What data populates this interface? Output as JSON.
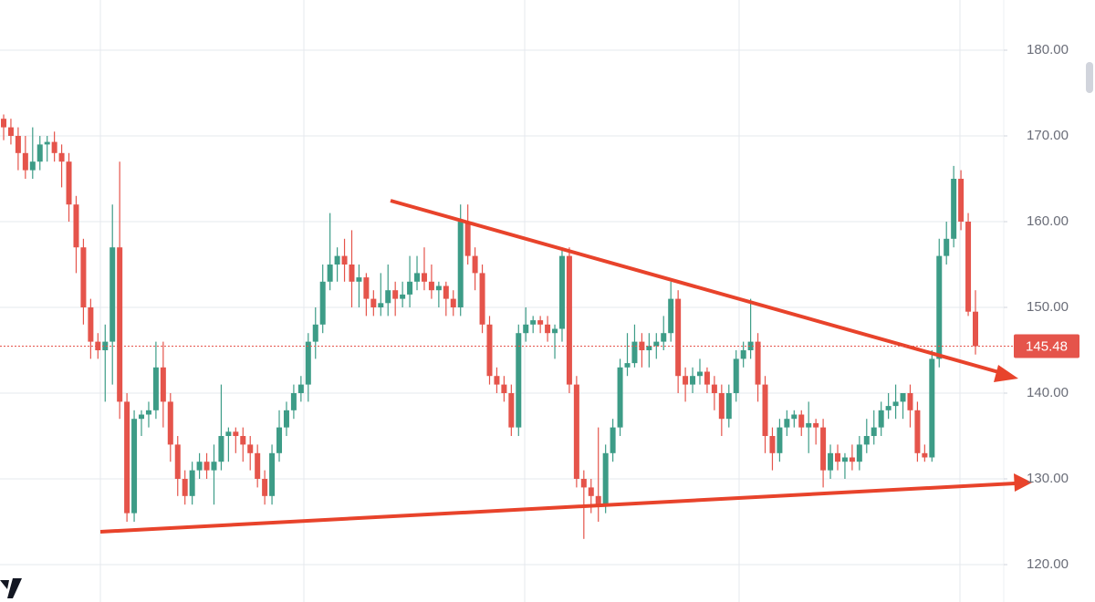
{
  "chart_data": {
    "type": "candlestick",
    "up_color": "#3d9c87",
    "down_color": "#e5544b",
    "ylim": [
      115.64,
      185.85
    ],
    "yticks": [
      {
        "value": 180,
        "label": "180.00"
      },
      {
        "value": 170,
        "label": "170.00"
      },
      {
        "value": 160,
        "label": "160.00"
      },
      {
        "value": 150,
        "label": "150.00"
      },
      {
        "value": 140,
        "label": "140.00"
      },
      {
        "value": 130,
        "label": "130.00"
      },
      {
        "value": 120,
        "label": "120.00"
      }
    ],
    "grid": true,
    "last_price": 145.48,
    "last_price_color": "#e5544b",
    "ohlc": [
      [
        172,
        172.5,
        169.5,
        171
      ],
      [
        171,
        172,
        169,
        170
      ],
      [
        170,
        171,
        166,
        168
      ],
      [
        168,
        170,
        165,
        166
      ],
      [
        166,
        171,
        165,
        167
      ],
      [
        167,
        170,
        166,
        169
      ],
      [
        169,
        170,
        167,
        169.3
      ],
      [
        169.3,
        170.5,
        167,
        168
      ],
      [
        168,
        169,
        164,
        167
      ],
      [
        167,
        168,
        160,
        162
      ],
      [
        162,
        163,
        154,
        157
      ],
      [
        157,
        158,
        148,
        150
      ],
      [
        150,
        151,
        144,
        146
      ],
      [
        146,
        147,
        144,
        145
      ],
      [
        145,
        148,
        139,
        146
      ],
      [
        146,
        162,
        141,
        157
      ],
      [
        157,
        167,
        137,
        139
      ],
      [
        139,
        140,
        125,
        126
      ],
      [
        126,
        138,
        125,
        137
      ],
      [
        137,
        138,
        135,
        137.5
      ],
      [
        137.5,
        139,
        136,
        138
      ],
      [
        138,
        146,
        137,
        143
      ],
      [
        143,
        146,
        136,
        139
      ],
      [
        139,
        140,
        132,
        134
      ],
      [
        134,
        135,
        128,
        130
      ],
      [
        130,
        131,
        127,
        128
      ],
      [
        128,
        132,
        127,
        131
      ],
      [
        131,
        133,
        130,
        132
      ],
      [
        132,
        133,
        130,
        131
      ],
      [
        131,
        134,
        127,
        132
      ],
      [
        132,
        141,
        131,
        135
      ],
      [
        135,
        136,
        132,
        135.5
      ],
      [
        135.5,
        136,
        133,
        135
      ],
      [
        135,
        136,
        132,
        134
      ],
      [
        134,
        135,
        131,
        133
      ],
      [
        133,
        134,
        129,
        130
      ],
      [
        130,
        131,
        127,
        128
      ],
      [
        128,
        134,
        127,
        133
      ],
      [
        133,
        138,
        132,
        136
      ],
      [
        136,
        139,
        135,
        138
      ],
      [
        138,
        141,
        137,
        140
      ],
      [
        140,
        142,
        139,
        141
      ],
      [
        141,
        147,
        139,
        146
      ],
      [
        146,
        150,
        144,
        148
      ],
      [
        148,
        155,
        147,
        153
      ],
      [
        153,
        161,
        152,
        155
      ],
      [
        155,
        157,
        153,
        156
      ],
      [
        156,
        158,
        153,
        155
      ],
      [
        155,
        159,
        150,
        153
      ],
      [
        153,
        155,
        150,
        153.5
      ],
      [
        153.5,
        154,
        149,
        151
      ],
      [
        151,
        152,
        149,
        150
      ],
      [
        150,
        154,
        149,
        150.5
      ],
      [
        150.5,
        155,
        149,
        152
      ],
      [
        152,
        153,
        149,
        151
      ],
      [
        151,
        153,
        150,
        151.5
      ],
      [
        151.5,
        156,
        150,
        153
      ],
      [
        153,
        156,
        152,
        154
      ],
      [
        154,
        157,
        152,
        153
      ],
      [
        153,
        155,
        151,
        152
      ],
      [
        152,
        153,
        150,
        152.5
      ],
      [
        152.5,
        153,
        149,
        151
      ],
      [
        151,
        152,
        149,
        150
      ],
      [
        150,
        162,
        149,
        160
      ],
      [
        160,
        162,
        155,
        156
      ],
      [
        156,
        157,
        152,
        154
      ],
      [
        154,
        155,
        147,
        148
      ],
      [
        148,
        149,
        141,
        142
      ],
      [
        142,
        143,
        140,
        141
      ],
      [
        141,
        142,
        139,
        140
      ],
      [
        140,
        141,
        135,
        136
      ],
      [
        136,
        148,
        135,
        147
      ],
      [
        147,
        150,
        146,
        148
      ],
      [
        148,
        149,
        147,
        148.5
      ],
      [
        148.5,
        149,
        147,
        148
      ],
      [
        148,
        149,
        146,
        147
      ],
      [
        147,
        148,
        144,
        147.5
      ],
      [
        147.5,
        157,
        146,
        156
      ],
      [
        156,
        157,
        140,
        141
      ],
      [
        141,
        142,
        129,
        130
      ],
      [
        130,
        131,
        123,
        129
      ],
      [
        129,
        130,
        126,
        128
      ],
      [
        128,
        136,
        125,
        127
      ],
      [
        127,
        134,
        126,
        133
      ],
      [
        133,
        137,
        132,
        136
      ],
      [
        136,
        144,
        135,
        143
      ],
      [
        143,
        147,
        142,
        143.5
      ],
      [
        143.5,
        148,
        143,
        146
      ],
      [
        146,
        147,
        143,
        145
      ],
      [
        145,
        147,
        143,
        145.5
      ],
      [
        145.5,
        147,
        144,
        146
      ],
      [
        146,
        149,
        145,
        147
      ],
      [
        147,
        153,
        146,
        151
      ],
      [
        151,
        152,
        140,
        142
      ],
      [
        142,
        143,
        139,
        141
      ],
      [
        141,
        143,
        140,
        142
      ],
      [
        142,
        144,
        141,
        142.5
      ],
      [
        142.5,
        143,
        140,
        141
      ],
      [
        141,
        142,
        138,
        140
      ],
      [
        140,
        141,
        135,
        137
      ],
      [
        137,
        141,
        136,
        140
      ],
      [
        140,
        145,
        139,
        144
      ],
      [
        144,
        146,
        143,
        145
      ],
      [
        145,
        151,
        144,
        146
      ],
      [
        146,
        147,
        139,
        141
      ],
      [
        141,
        142,
        133,
        135
      ],
      [
        135,
        136,
        131,
        133
      ],
      [
        133,
        137,
        132,
        136
      ],
      [
        136,
        138,
        135,
        137
      ],
      [
        137,
        138,
        136,
        137.5
      ],
      [
        137.5,
        138,
        135,
        136
      ],
      [
        136,
        139,
        133,
        136.5
      ],
      [
        136.5,
        137,
        134,
        136
      ],
      [
        136,
        137,
        129,
        131
      ],
      [
        131,
        134,
        130,
        133
      ],
      [
        133,
        134,
        131,
        132
      ],
      [
        132,
        133,
        130,
        132.5
      ],
      [
        132.5,
        134,
        131,
        132
      ],
      [
        132,
        135,
        131,
        134
      ],
      [
        134,
        137,
        133,
        135
      ],
      [
        135,
        138,
        134,
        136
      ],
      [
        136,
        139,
        135,
        138
      ],
      [
        138,
        140,
        137,
        138.5
      ],
      [
        138.5,
        141,
        137,
        139
      ],
      [
        139,
        140,
        137,
        140
      ],
      [
        140,
        141,
        136,
        138
      ],
      [
        138,
        139,
        132,
        133
      ],
      [
        133,
        134,
        132,
        132.5
      ],
      [
        132.5,
        145,
        132,
        144
      ],
      [
        144,
        158,
        143,
        156
      ],
      [
        156,
        160,
        155,
        158
      ],
      [
        158,
        166.5,
        157,
        165
      ],
      [
        165,
        166,
        159,
        160
      ],
      [
        160,
        161,
        149,
        149.5
      ],
      [
        149.5,
        152,
        144.5,
        145.48
      ]
    ]
  }
}
